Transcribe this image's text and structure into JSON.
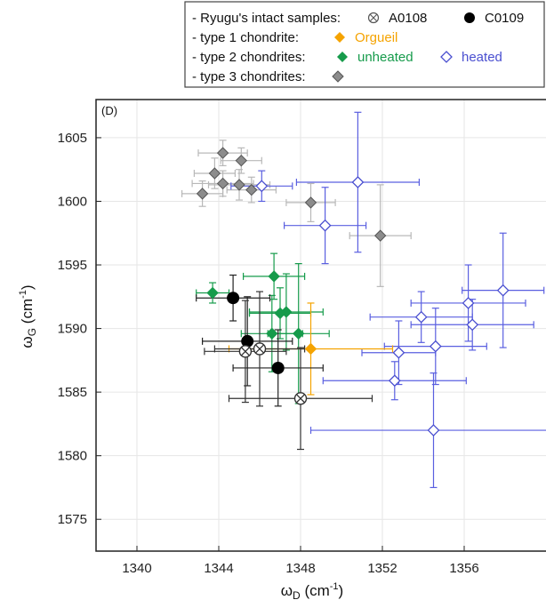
{
  "chart_data": {
    "type": "scatter",
    "panel_label": "(D)",
    "xlabel": {
      "main": "ω",
      "sub": "D",
      "unit_open": " (cm",
      "sup": "-1",
      "unit_close": ")"
    },
    "ylabel": {
      "main": "ω",
      "sub": "G",
      "unit_open": " (cm",
      "sup": "-1",
      "unit_close": ")"
    },
    "xlim": [
      1338,
      1360
    ],
    "ylim": [
      1572.5,
      1608
    ],
    "xticks": [
      1340,
      1344,
      1348,
      1352,
      1356
    ],
    "yticks": [
      1575,
      1580,
      1585,
      1590,
      1595,
      1600,
      1605
    ],
    "grid": true,
    "legend_position": "top-right, outside plot",
    "legend": {
      "rows": [
        {
          "label": "- Ryugu's intact samples:",
          "entries": [
            {
              "marker": "circle-x",
              "text": "A0108",
              "color": "#555555",
              "text_color": "#111111"
            },
            {
              "marker": "circle-filled",
              "text": "C0109",
              "color": "#000000",
              "text_color": "#111111"
            }
          ]
        },
        {
          "label": "- type 1 chondrite:",
          "entries": [
            {
              "marker": "diamond-filled",
              "text": "Orgueil",
              "color": "#f5a300",
              "text_color": "#f5a300"
            }
          ]
        },
        {
          "label": "- type 2 chondrites:",
          "entries": [
            {
              "marker": "diamond-filled",
              "text": "unheated",
              "color": "#169b4b",
              "text_color": "#169b4b"
            },
            {
              "marker": "diamond-open",
              "text": "heated",
              "color": "#4a4fd0",
              "text_color": "#4a4fd0"
            }
          ]
        },
        {
          "label": "- type 3 chondrites:",
          "entries": [
            {
              "marker": "diamond-gray",
              "text": "",
              "color": "#888888",
              "text_color": "#111111"
            }
          ]
        }
      ]
    },
    "colors": {
      "type3": "#9a9a9a",
      "type3_err": "#b8b8b8",
      "unheated": "#169b4b",
      "heated": "#4a4fd0",
      "heated_err": "#5a5fe0",
      "orgueil": "#f5a300",
      "C0109": "#000000",
      "A0108": "#444444"
    },
    "series": [
      {
        "name": "type 3 chondrites",
        "marker": "diamond-gray",
        "points": [
          {
            "x": 1344.2,
            "y": 1603.8,
            "xerr": 1.2,
            "yerr": 1.0
          },
          {
            "x": 1345.1,
            "y": 1603.2,
            "xerr": 1.0,
            "yerr": 1.0
          },
          {
            "x": 1343.8,
            "y": 1602.2,
            "xerr": 1.0,
            "yerr": 1.2
          },
          {
            "x": 1344.2,
            "y": 1601.4,
            "xerr": 1.5,
            "yerr": 1.0
          },
          {
            "x": 1345.0,
            "y": 1601.3,
            "xerr": 1.5,
            "yerr": 1.2
          },
          {
            "x": 1345.6,
            "y": 1600.9,
            "xerr": 1.2,
            "yerr": 1.0
          },
          {
            "x": 1343.2,
            "y": 1600.6,
            "xerr": 1.0,
            "yerr": 1.0
          },
          {
            "x": 1348.5,
            "y": 1599.9,
            "xerr": 1.2,
            "yerr": 1.5
          },
          {
            "x": 1351.9,
            "y": 1597.3,
            "xerr": 1.5,
            "yerr": 4.0
          }
        ]
      },
      {
        "name": "unheated",
        "marker": "diamond-filled",
        "points": [
          {
            "x": 1343.7,
            "y": 1592.8,
            "xerr": 0.8,
            "yerr": 0.8
          },
          {
            "x": 1346.7,
            "y": 1594.1,
            "xerr": 1.5,
            "yerr": 1.8
          },
          {
            "x": 1347.3,
            "y": 1591.3,
            "xerr": 1.8,
            "yerr": 3.0
          },
          {
            "x": 1347.0,
            "y": 1591.2,
            "xerr": 1.5,
            "yerr": 2.0
          },
          {
            "x": 1346.6,
            "y": 1589.6,
            "xerr": 1.5,
            "yerr": 3.0
          },
          {
            "x": 1347.9,
            "y": 1589.6,
            "xerr": 1.5,
            "yerr": 5.5
          }
        ]
      },
      {
        "name": "heated",
        "marker": "diamond-open",
        "points": [
          {
            "x": 1350.8,
            "y": 1601.5,
            "xerr": 3.0,
            "yerr": 5.5
          },
          {
            "x": 1346.1,
            "y": 1601.2,
            "xerr": 1.5,
            "yerr": 1.2
          },
          {
            "x": 1349.2,
            "y": 1598.1,
            "xerr": 2.0,
            "yerr": 3.0
          },
          {
            "x": 1357.9,
            "y": 1593.0,
            "xerr": 2.0,
            "yerr": 4.5
          },
          {
            "x": 1356.2,
            "y": 1592.0,
            "xerr": 2.8,
            "yerr": 3.0
          },
          {
            "x": 1353.9,
            "y": 1590.9,
            "xerr": 2.5,
            "yerr": 2.0
          },
          {
            "x": 1356.4,
            "y": 1590.3,
            "xerr": 3.0,
            "yerr": 2.0
          },
          {
            "x": 1354.6,
            "y": 1588.6,
            "xerr": 2.5,
            "yerr": 3.0
          },
          {
            "x": 1352.8,
            "y": 1588.1,
            "xerr": 1.8,
            "yerr": 2.5
          },
          {
            "x": 1352.6,
            "y": 1585.9,
            "xerr": 3.5,
            "yerr": 1.5
          },
          {
            "x": 1354.5,
            "y": 1582.0,
            "xerr": 6.0,
            "yerr": 4.5
          }
        ]
      },
      {
        "name": "Orgueil",
        "marker": "diamond-filled",
        "points": [
          {
            "x": 1348.5,
            "y": 1588.4,
            "xerr": 4.0,
            "yerr": 3.6
          }
        ]
      },
      {
        "name": "C0109",
        "marker": "circle-filled",
        "points": [
          {
            "x": 1344.7,
            "y": 1592.4,
            "xerr": 1.8,
            "yerr": 1.8
          },
          {
            "x": 1345.4,
            "y": 1589.0,
            "xerr": 2.2,
            "yerr": 3.5
          },
          {
            "x": 1346.9,
            "y": 1586.9,
            "xerr": 2.2,
            "yerr": 3.0
          }
        ]
      },
      {
        "name": "A0108",
        "marker": "circle-x",
        "points": [
          {
            "x": 1345.3,
            "y": 1588.2,
            "xerr": 2.0,
            "yerr": 4.0
          },
          {
            "x": 1346.0,
            "y": 1588.4,
            "xerr": 2.2,
            "yerr": 4.5
          },
          {
            "x": 1348.0,
            "y": 1584.5,
            "xerr": 3.5,
            "yerr": 4.0
          }
        ]
      }
    ]
  }
}
